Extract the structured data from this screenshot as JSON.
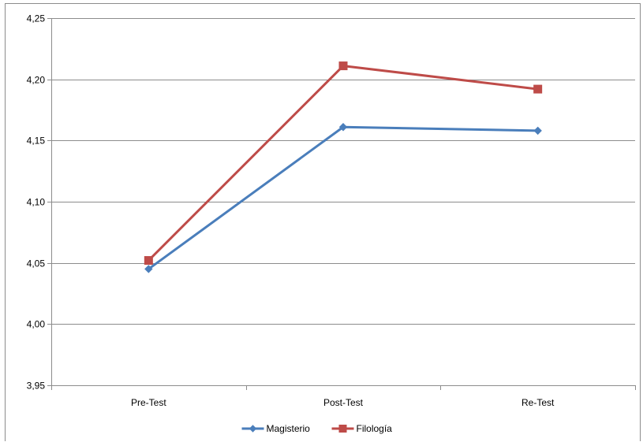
{
  "chart_data": {
    "type": "line",
    "categories": [
      "Pre-Test",
      "Post-Test",
      "Re-Test"
    ],
    "series": [
      {
        "name": "Magisterio",
        "values": [
          4.045,
          4.161,
          4.158
        ],
        "color": "#4A7EBB",
        "marker": "diamond"
      },
      {
        "name": "Filología",
        "values": [
          4.052,
          4.211,
          4.192
        ],
        "color": "#BE4B48",
        "marker": "square"
      }
    ],
    "title": "",
    "xlabel": "",
    "ylabel": "",
    "ylim": [
      3.95,
      4.25
    ],
    "yticks": [
      3.95,
      4.0,
      4.05,
      4.1,
      4.15,
      4.2,
      4.25
    ],
    "ytick_labels": [
      "3,95",
      "4,00",
      "4,05",
      "4,10",
      "4,15",
      "4,20",
      "4,25"
    ],
    "grid": true,
    "legend_position": "bottom"
  }
}
